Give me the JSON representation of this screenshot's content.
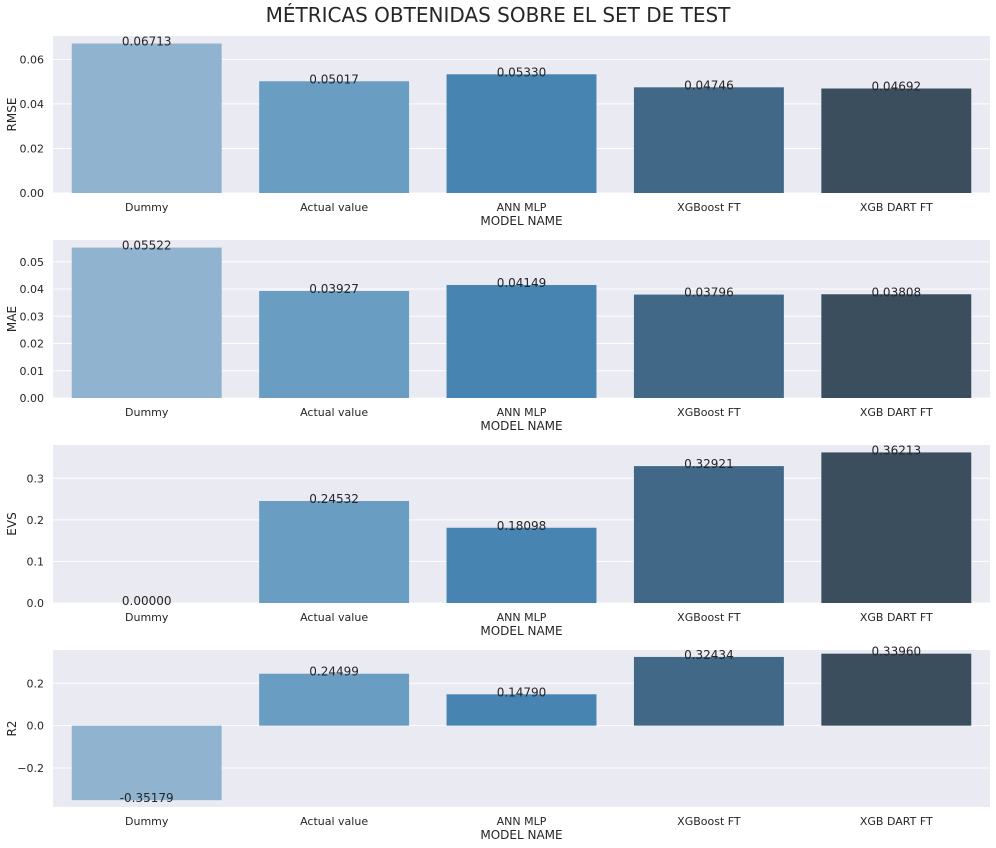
{
  "title": "MÉTRICAS OBTENIDAS SOBRE EL SET DE TEST",
  "colors": {
    "axes_bg": "#EAEAF2",
    "grid": "#FFFFFF",
    "text": "#262626",
    "bars": [
      "#90B4D0",
      "#6A9DC2",
      "#4884B2",
      "#426887",
      "#3A4E5E"
    ]
  },
  "chart_data": [
    {
      "type": "bar",
      "categories": [
        "Dummy",
        "Actual value",
        "ANN MLP",
        "XGBoost FT",
        "XGB DART FT"
      ],
      "values": [
        0.06713,
        0.05017,
        0.0533,
        0.04746,
        0.04692
      ],
      "value_labels": [
        "0.06713",
        "0.05017",
        "0.05330",
        "0.04746",
        "0.04692"
      ],
      "xlabel": "MODEL NAME",
      "ylabel": "RMSE",
      "ylim": [
        0,
        0.0705
      ],
      "yticks": [
        0,
        0.02,
        0.04,
        0.06
      ],
      "ytick_labels": [
        "0.00",
        "0.02",
        "0.04",
        "0.06"
      ],
      "grid": true
    },
    {
      "type": "bar",
      "categories": [
        "Dummy",
        "Actual value",
        "ANN MLP",
        "XGBoost FT",
        "XGB DART FT"
      ],
      "values": [
        0.05522,
        0.03927,
        0.04149,
        0.03796,
        0.03808
      ],
      "value_labels": [
        "0.05522",
        "0.03927",
        "0.04149",
        "0.03796",
        "0.03808"
      ],
      "xlabel": "MODEL NAME",
      "ylabel": "MAE",
      "ylim": [
        0,
        0.058
      ],
      "yticks": [
        0,
        0.01,
        0.02,
        0.03,
        0.04,
        0.05
      ],
      "ytick_labels": [
        "0.00",
        "0.01",
        "0.02",
        "0.03",
        "0.04",
        "0.05"
      ],
      "grid": true
    },
    {
      "type": "bar",
      "categories": [
        "Dummy",
        "Actual value",
        "ANN MLP",
        "XGBoost FT",
        "XGB DART FT"
      ],
      "values": [
        0.0,
        0.24532,
        0.18098,
        0.32921,
        0.36213
      ],
      "value_labels": [
        "0.00000",
        "0.24532",
        "0.18098",
        "0.32921",
        "0.36213"
      ],
      "xlabel": "MODEL NAME",
      "ylabel": "EVS",
      "ylim": [
        0,
        0.38
      ],
      "yticks": [
        0,
        0.1,
        0.2,
        0.3
      ],
      "ytick_labels": [
        "0.0",
        "0.1",
        "0.2",
        "0.3"
      ],
      "grid": true
    },
    {
      "type": "bar",
      "categories": [
        "Dummy",
        "Actual value",
        "ANN MLP",
        "XGBoost FT",
        "XGB DART FT"
      ],
      "values": [
        -0.35179,
        0.24499,
        0.1479,
        0.32434,
        0.3396
      ],
      "value_labels": [
        "-0.35179",
        "0.24499",
        "0.14790",
        "0.32434",
        "0.33960"
      ],
      "xlabel": "MODEL NAME",
      "ylabel": "R2",
      "ylim": [
        -0.384,
        0.357
      ],
      "yticks": [
        -0.2,
        0,
        0.2
      ],
      "ytick_labels": [
        "−0.2",
        "0.0",
        "0.2"
      ],
      "grid": true
    }
  ]
}
